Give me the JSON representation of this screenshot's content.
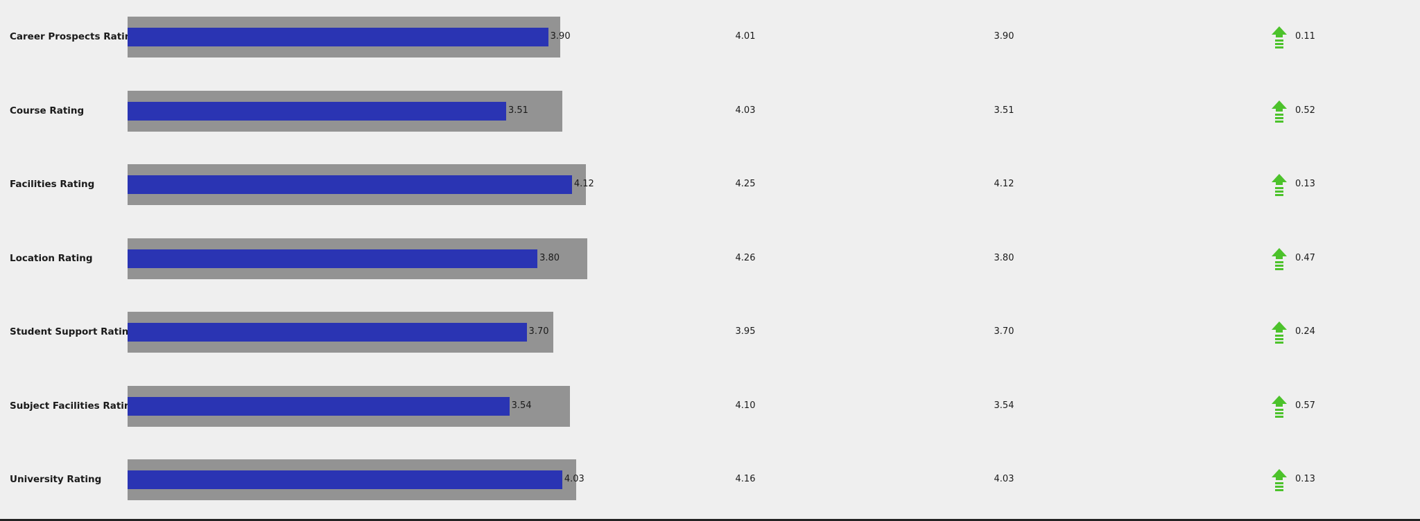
{
  "colors": {
    "background": "#efefef",
    "bar_background": "#939393",
    "bar_fill": "#2a34b3",
    "arrow_up": "#4cc22b"
  },
  "icons": {
    "trend": "arrow-up-icon"
  },
  "chart_data": {
    "type": "bar",
    "orientation": "horizontal",
    "xlim": [
      0,
      4.5
    ],
    "categories": [
      "Career Prospects Rating",
      "Course Rating",
      "Facilities Rating",
      "Location Rating",
      "Student Support Rating",
      "Subject Facilities Rating",
      "University Rating"
    ],
    "series": [
      {
        "values": [
          3.9,
          3.51,
          4.12,
          3.8,
          3.7,
          3.54,
          4.03
        ]
      },
      {
        "values": [
          4.01,
          4.03,
          4.25,
          4.26,
          3.95,
          4.1,
          4.16
        ]
      }
    ],
    "rows": [
      {
        "label": "Career Prospects Rating",
        "value": 3.9,
        "value_text": "3.90",
        "target": 4.01,
        "target_text": "4.01",
        "actual_text": "3.90",
        "diff_text": "0.11"
      },
      {
        "label": "Course Rating",
        "value": 3.51,
        "value_text": "3.51",
        "target": 4.03,
        "target_text": "4.03",
        "actual_text": "3.51",
        "diff_text": "0.52"
      },
      {
        "label": "Facilities Rating",
        "value": 4.12,
        "value_text": "4.12",
        "target": 4.25,
        "target_text": "4.25",
        "actual_text": "4.12",
        "diff_text": "0.13"
      },
      {
        "label": "Location Rating",
        "value": 3.8,
        "value_text": "3.80",
        "target": 4.26,
        "target_text": "4.26",
        "actual_text": "3.80",
        "diff_text": "0.47"
      },
      {
        "label": "Student Support Rating",
        "value": 3.7,
        "value_text": "3.70",
        "target": 3.95,
        "target_text": "3.95",
        "actual_text": "3.70",
        "diff_text": "0.24"
      },
      {
        "label": "Subject Facilities Rating",
        "value": 3.54,
        "value_text": "3.54",
        "target": 4.1,
        "target_text": "4.10",
        "actual_text": "3.54",
        "diff_text": "0.57"
      },
      {
        "label": "University Rating",
        "value": 4.03,
        "value_text": "4.03",
        "target": 4.16,
        "target_text": "4.16",
        "actual_text": "4.03",
        "diff_text": "0.13"
      }
    ]
  }
}
